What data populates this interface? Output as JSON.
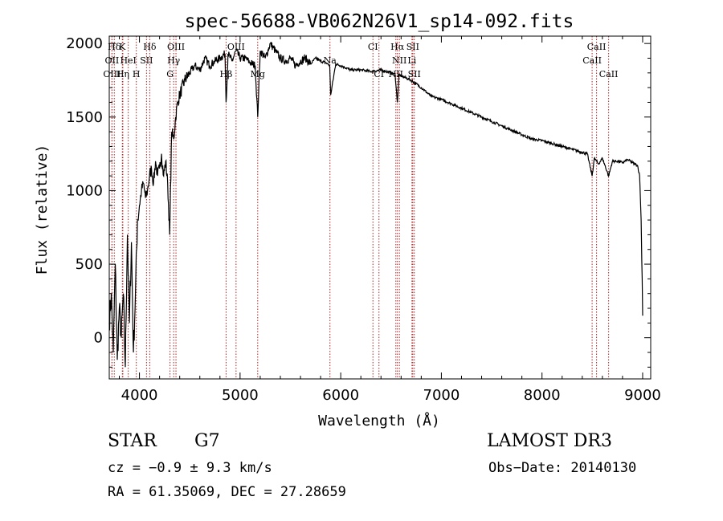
{
  "chart_data": {
    "type": "line",
    "title": "spec-56688-VB062N26V1_sp14-092.fits",
    "xlabel": "Wavelength (Å)",
    "ylabel": "Flux (relative)",
    "xlim": [
      3700,
      9080
    ],
    "ylim": [
      -280,
      2050
    ],
    "xticks": [
      4000,
      5000,
      6000,
      7000,
      8000,
      9000
    ],
    "yticks": [
      0,
      500,
      1000,
      1500,
      2000
    ],
    "grid": false,
    "series": [
      {
        "name": "spectrum",
        "x": [
          3700,
          3720,
          3740,
          3760,
          3780,
          3800,
          3820,
          3840,
          3860,
          3880,
          3900,
          3920,
          3940,
          3960,
          3980,
          4000,
          4020,
          4040,
          4060,
          4080,
          4100,
          4120,
          4140,
          4160,
          4180,
          4200,
          4220,
          4240,
          4260,
          4280,
          4300,
          4320,
          4340,
          4360,
          4380,
          4400,
          4450,
          4500,
          4550,
          4600,
          4650,
          4700,
          4750,
          4800,
          4850,
          4861,
          4880,
          4920,
          4960,
          5000,
          5050,
          5100,
          5150,
          5175,
          5200,
          5250,
          5300,
          5350,
          5400,
          5450,
          5500,
          5550,
          5600,
          5650,
          5700,
          5750,
          5800,
          5850,
          5890,
          5900,
          5950,
          6000,
          6100,
          6200,
          6300,
          6400,
          6500,
          6540,
          6563,
          6580,
          6600,
          6700,
          6800,
          6900,
          7000,
          7100,
          7200,
          7300,
          7400,
          7500,
          7600,
          7700,
          7800,
          7900,
          8000,
          8100,
          8200,
          8300,
          8400,
          8450,
          8498,
          8520,
          8542,
          8560,
          8600,
          8662,
          8700,
          8750,
          8800,
          8850,
          8900,
          8950,
          8970,
          8985,
          8995,
          9000
        ],
        "y": [
          100,
          300,
          -100,
          500,
          -150,
          200,
          0,
          300,
          -200,
          700,
          100,
          650,
          -100,
          300,
          800,
          900,
          1000,
          1050,
          950,
          1000,
          1100,
          1150,
          1050,
          1200,
          1100,
          1150,
          1250,
          1100,
          1200,
          1050,
          700,
          1400,
          1350,
          1500,
          1600,
          1650,
          1750,
          1800,
          1850,
          1820,
          1900,
          1850,
          1880,
          1900,
          1930,
          1600,
          1930,
          1880,
          1950,
          1900,
          1900,
          1870,
          1850,
          1500,
          1950,
          1900,
          2000,
          1950,
          1900,
          1880,
          1900,
          1850,
          1880,
          1900,
          1860,
          1900,
          1880,
          1870,
          1850,
          1650,
          1860,
          1850,
          1820,
          1820,
          1810,
          1820,
          1800,
          1790,
          1600,
          1790,
          1780,
          1750,
          1700,
          1640,
          1620,
          1590,
          1560,
          1530,
          1500,
          1470,
          1440,
          1410,
          1380,
          1350,
          1340,
          1320,
          1300,
          1280,
          1260,
          1250,
          1100,
          1220,
          1200,
          1180,
          1220,
          1100,
          1200,
          1200,
          1190,
          1210,
          1190,
          1170,
          1100,
          800,
          400,
          150
        ]
      }
    ],
    "lines": [
      {
        "label": "Hδ",
        "wl": 3750,
        "row": 1
      },
      {
        "label": "K",
        "wl": 3830,
        "row": 1
      },
      {
        "label": "Hδ",
        "wl": 4102,
        "row": 1
      },
      {
        "label": "OIII",
        "wl": 4363,
        "row": 1
      },
      {
        "label": "OIII",
        "wl": 4960,
        "row": 1
      },
      {
        "label": "CI",
        "wl": 6320,
        "row": 1
      },
      {
        "label": "Hα",
        "wl": 6563,
        "row": 1
      },
      {
        "label": "SII",
        "wl": 6716,
        "row": 1
      },
      {
        "label": "CaII",
        "wl": 8542,
        "row": 1
      },
      {
        "label": "OII",
        "wl": 3727,
        "row": 2
      },
      {
        "label": "HeI",
        "wl": 3889,
        "row": 2
      },
      {
        "label": "SII",
        "wl": 4070,
        "row": 2
      },
      {
        "label": "Hγ",
        "wl": 4340,
        "row": 2
      },
      {
        "label": "Na",
        "wl": 5893,
        "row": 2
      },
      {
        "label": "NII",
        "wl": 6583,
        "row": 2
      },
      {
        "label": "Li",
        "wl": 6708,
        "row": 2
      },
      {
        "label": "CaII",
        "wl": 8498,
        "row": 2
      },
      {
        "label": "OIII",
        "wl": 3727,
        "row": 3
      },
      {
        "label": "Hη",
        "wl": 3835,
        "row": 3
      },
      {
        "label": "H",
        "wl": 3969,
        "row": 3
      },
      {
        "label": "G",
        "wl": 4304,
        "row": 3
      },
      {
        "label": "Hβ",
        "wl": 4861,
        "row": 3
      },
      {
        "label": "Mg",
        "wl": 5175,
        "row": 3
      },
      {
        "label": "CI",
        "wl": 6380,
        "row": 3
      },
      {
        "label": "NII",
        "wl": 6548,
        "row": 3
      },
      {
        "label": "SII",
        "wl": 6731,
        "row": 3
      },
      {
        "label": "CaII",
        "wl": 8662,
        "row": 3
      }
    ]
  },
  "info": {
    "object_class": "STAR",
    "subclass": "G7",
    "survey": "LAMOST DR3",
    "cz": "cz = −0.9 ± 9.3 km/s",
    "obs_date": "Obs−Date: 20140130",
    "radec": "RA =  61.35069, DEC =  27.28659"
  },
  "colors": {
    "spectrum": "#000000",
    "line_markers": "#b22222",
    "axes": "#000000"
  }
}
